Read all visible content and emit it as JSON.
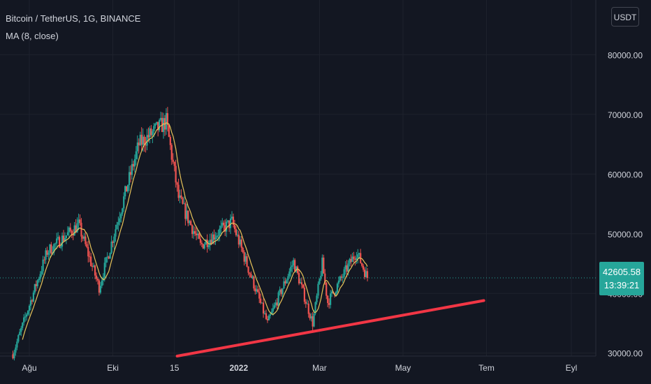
{
  "header": {
    "symbol_title": "Bitcoin / TetherUS, 1G, BINANCE",
    "indicator": "MA (8, close)",
    "currency_button": "USDT"
  },
  "price_tag": {
    "price": "42605.58",
    "countdown": "13:39:21"
  },
  "colors": {
    "background": "#131722",
    "grid": "#1e222d",
    "up": "#26a69a",
    "down": "#ef5350",
    "ma": "#e7c35a",
    "trendline": "#f23645",
    "text": "#d1d4dc"
  },
  "chart_data": {
    "type": "candlestick",
    "y_axis": {
      "ticks": [
        30000,
        40000,
        50000,
        60000,
        70000,
        80000
      ],
      "tick_labels": [
        "30000.00",
        "40000.00",
        "50000.00",
        "60000.00",
        "70000.00",
        "80000.00"
      ],
      "range": [
        29500,
        88000
      ]
    },
    "x_axis": {
      "labels": [
        {
          "text": "Ağu",
          "date": "2021-08-01"
        },
        {
          "text": "Eki",
          "date": "2021-10-01"
        },
        {
          "text": "15",
          "date": "2021-11-15"
        },
        {
          "text": "2022",
          "date": "2022-01-01"
        },
        {
          "text": "Mar",
          "date": "2022-03-01"
        },
        {
          "text": "May",
          "date": "2022-05-01"
        },
        {
          "text": "Tem",
          "date": "2022-07-01"
        },
        {
          "text": "Eyl",
          "date": "2022-09-01"
        }
      ]
    },
    "series": {
      "price_path_dates": [
        "2021-07-20",
        "2021-08-14",
        "2021-09-06",
        "2021-09-21",
        "2021-10-20",
        "2021-11-09",
        "2021-11-18",
        "2021-12-04",
        "2021-12-27",
        "2022-01-22",
        "2022-02-10",
        "2022-02-24",
        "2022-03-03",
        "2022-03-07",
        "2022-03-28",
        "2022-04-05"
      ],
      "price_path_values": [
        29800,
        47000,
        51500,
        41000,
        65000,
        68800,
        56000,
        48000,
        52000,
        35000,
        45300,
        35000,
        45000,
        38500,
        47000,
        42600
      ],
      "moving_average": {
        "name": "MA (8, close)",
        "period": 8
      }
    },
    "current_price": 42605.58,
    "trendline": {
      "start": {
        "date": "2021-11-17",
        "value": 29500
      },
      "end": {
        "date": "2022-06-29",
        "value": 38800
      }
    }
  }
}
